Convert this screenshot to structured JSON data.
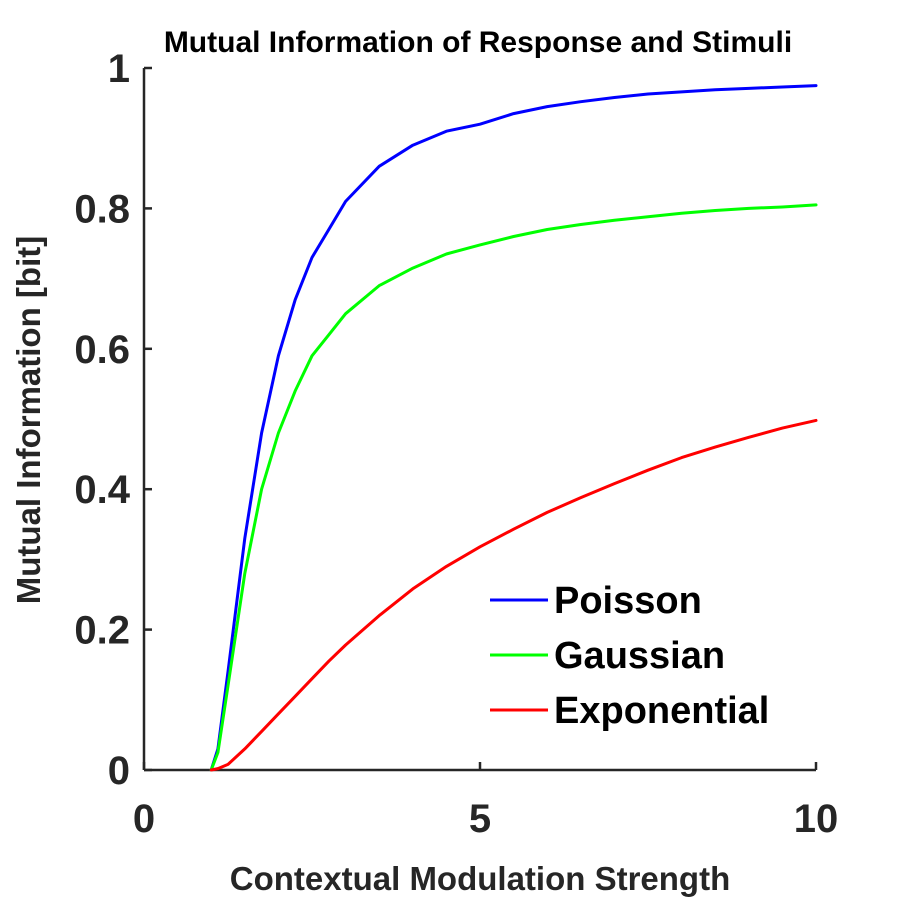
{
  "chart_data": {
    "type": "line",
    "title": "Mutual Information of Response and Stimuli",
    "xlabel": "Contextual Modulation Strength",
    "ylabel": "Mutual Information [bit]",
    "xlim": [
      0,
      10
    ],
    "ylim": [
      0,
      1
    ],
    "xticks": [
      0,
      5,
      10
    ],
    "xtick_labels": [
      "0",
      "5",
      "10"
    ],
    "yticks": [
      0,
      0.2,
      0.4,
      0.6,
      0.8,
      1
    ],
    "ytick_labels": [
      "0",
      "0.2",
      "0.4",
      "0.6",
      "0.8",
      "1"
    ],
    "grid": false,
    "legend_position": "bottom-right",
    "x": [
      1,
      1.1,
      1.25,
      1.5,
      1.75,
      2,
      2.25,
      2.5,
      2.75,
      3,
      3.5,
      4,
      4.5,
      5,
      5.5,
      6,
      6.5,
      7,
      7.5,
      8,
      8.5,
      9,
      9.5,
      10
    ],
    "series": [
      {
        "name": "Poisson",
        "color": "#0000ff",
        "values": [
          0,
          0.03,
          0.14,
          0.33,
          0.48,
          0.59,
          0.67,
          0.73,
          0.77,
          0.81,
          0.86,
          0.89,
          0.91,
          0.92,
          0.935,
          0.945,
          0.952,
          0.958,
          0.963,
          0.966,
          0.969,
          0.971,
          0.973,
          0.975
        ]
      },
      {
        "name": "Gaussian",
        "color": "#00ff00",
        "values": [
          0,
          0.025,
          0.12,
          0.28,
          0.4,
          0.48,
          0.54,
          0.59,
          0.62,
          0.65,
          0.69,
          0.715,
          0.735,
          0.748,
          0.76,
          0.77,
          0.777,
          0.783,
          0.788,
          0.793,
          0.797,
          0.8,
          0.802,
          0.805
        ]
      },
      {
        "name": "Exponential",
        "color": "#ff0000",
        "values": [
          0,
          0.002,
          0.008,
          0.03,
          0.055,
          0.08,
          0.105,
          0.13,
          0.155,
          0.178,
          0.22,
          0.258,
          0.29,
          0.318,
          0.343,
          0.367,
          0.388,
          0.408,
          0.427,
          0.445,
          0.46,
          0.474,
          0.487,
          0.498
        ]
      }
    ]
  }
}
